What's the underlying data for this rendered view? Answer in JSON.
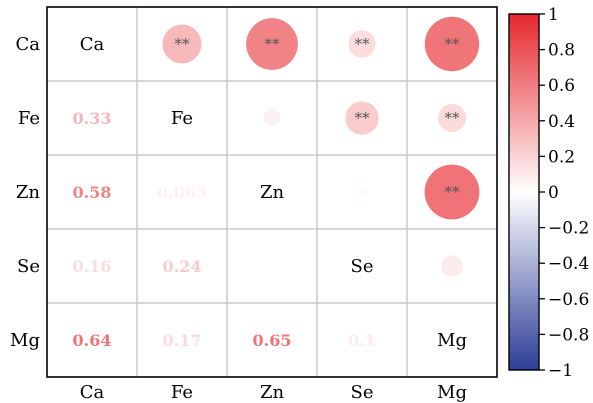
{
  "chart_data": {
    "type": "heatmap",
    "title": "",
    "xlabel": "",
    "ylabel": "",
    "variables": [
      "Ca",
      "Fe",
      "Zn",
      "Se",
      "Mg"
    ],
    "matrix": [
      [
        1,
        0.33,
        0.58,
        0.16,
        0.64
      ],
      [
        0.33,
        1,
        0.063,
        0.24,
        0.17
      ],
      [
        0.58,
        0.063,
        1,
        0.02,
        0.65
      ],
      [
        0.16,
        0.24,
        0.02,
        1,
        0.1
      ],
      [
        0.64,
        0.17,
        0.65,
        0.1,
        1
      ]
    ],
    "lower_labels": [
      {
        "row": 1,
        "col": 0,
        "text": "0.33"
      },
      {
        "row": 2,
        "col": 0,
        "text": "0.58"
      },
      {
        "row": 2,
        "col": 1,
        "text": "0.063"
      },
      {
        "row": 3,
        "col": 0,
        "text": "0.16"
      },
      {
        "row": 3,
        "col": 1,
        "text": "0.24"
      },
      {
        "row": 4,
        "col": 0,
        "text": "0.64"
      },
      {
        "row": 4,
        "col": 1,
        "text": "0.17"
      },
      {
        "row": 4,
        "col": 2,
        "text": "0.65"
      },
      {
        "row": 4,
        "col": 3,
        "text": "0.1"
      }
    ],
    "significance_marker": "**",
    "significant_upper": [
      {
        "row": 0,
        "col": 1
      },
      {
        "row": 0,
        "col": 2
      },
      {
        "row": 0,
        "col": 3
      },
      {
        "row": 0,
        "col": 4
      },
      {
        "row": 1,
        "col": 3
      },
      {
        "row": 1,
        "col": 4
      },
      {
        "row": 2,
        "col": 4
      }
    ],
    "colorbar": {
      "range": [
        -1,
        1
      ],
      "ticks": [
        "1",
        "0.8",
        "0.6",
        "0.4",
        "0.2",
        "0",
        "−0.2",
        "−0.4",
        "−0.6",
        "−0.8",
        "−1"
      ],
      "tick_values": [
        1,
        0.8,
        0.6,
        0.4,
        0.2,
        0,
        -0.2,
        -0.4,
        -0.6,
        -0.8,
        -1
      ],
      "color_negative": "#2c3d96",
      "color_zero": "#ffffff",
      "color_positive": "#e6282d"
    },
    "grid": true,
    "legend": "right colorbar"
  }
}
